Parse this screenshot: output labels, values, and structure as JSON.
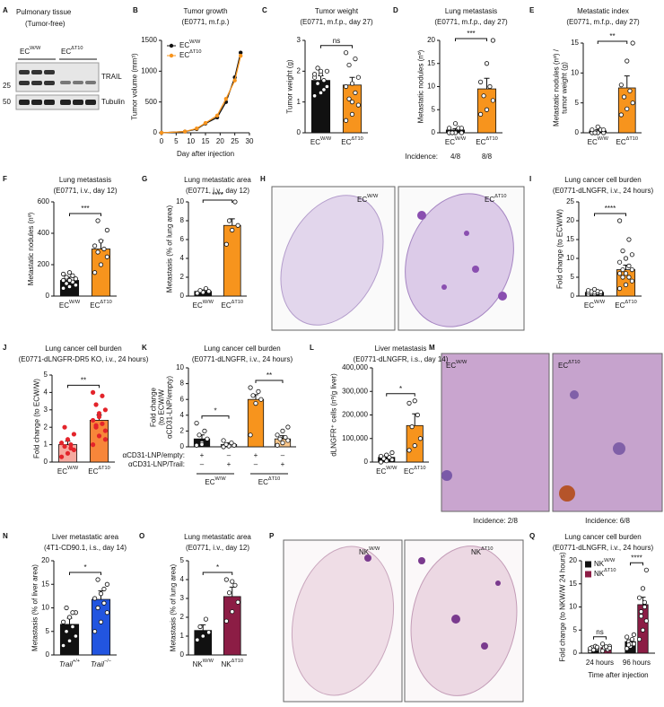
{
  "chart_data": [
    {
      "type": "line",
      "panel": "B",
      "title": "Tumor growth",
      "subtitle": "(E0771, m.f.p.)",
      "xlabel": "Day after injection",
      "ylabel": "Tumor volume (mm³)",
      "x": [
        0,
        8,
        12,
        15,
        19,
        22,
        25,
        27
      ],
      "xlim": [
        0,
        30
      ],
      "xticks": [
        0,
        5,
        10,
        15,
        20,
        25,
        30
      ],
      "ylim": [
        0,
        1500
      ],
      "yticks": [
        0,
        500,
        1000,
        1500
      ],
      "legend": "upper left",
      "series": [
        {
          "name": "ECW/W",
          "color": "#111111",
          "values": [
            0,
            20,
            60,
            150,
            250,
            500,
            900,
            1300
          ]
        },
        {
          "name": "ECΔT10",
          "color": "#f7941d",
          "values": [
            0,
            20,
            70,
            160,
            280,
            550,
            850,
            1250
          ]
        }
      ]
    },
    {
      "type": "bar",
      "panel": "C",
      "title": "Tumor weight",
      "subtitle": "(E0771, m.f.p., day 27)",
      "ylabel": "Tumor weight (g)",
      "categories": [
        "ECW/W",
        "ECΔT10"
      ],
      "values": [
        1.7,
        1.55
      ],
      "errors": [
        0.15,
        0.25
      ],
      "colors": [
        "#111111",
        "#f7941d"
      ],
      "ylim": [
        0,
        3
      ],
      "yticks": [
        0,
        1,
        2,
        3
      ],
      "significance": [
        "ns"
      ],
      "points": [
        [
          1.2,
          1.3,
          1.5,
          1.6,
          1.7,
          1.8,
          1.9,
          2.0,
          2.1,
          1.4,
          1.9,
          2.0
        ],
        [
          0.4,
          0.6,
          0.9,
          1.1,
          1.3,
          1.5,
          1.6,
          1.8,
          2.2,
          2.4,
          2.6,
          1.0
        ]
      ]
    },
    {
      "type": "bar",
      "panel": "D",
      "title": "Lung metastasis",
      "subtitle": "(E0771, m.f.p., day 27)",
      "ylabel": "Metastatic nodules (nº)",
      "categories": [
        "ECW/W",
        "ECΔT10"
      ],
      "values": [
        0.6,
        9.5
      ],
      "errors": [
        0.3,
        2.3
      ],
      "colors": [
        "#111111",
        "#f7941d"
      ],
      "ylim": [
        0,
        20
      ],
      "yticks": [
        0,
        5,
        10,
        15,
        20
      ],
      "significance": [
        "***"
      ],
      "incidence_label": "Incidence:",
      "incidence": [
        "4/8",
        "8/8"
      ],
      "points": [
        [
          0,
          0,
          0,
          0,
          1,
          1,
          2,
          1
        ],
        [
          4,
          5,
          7,
          8,
          10,
          11,
          15,
          20
        ]
      ]
    },
    {
      "type": "bar",
      "panel": "E",
      "title": "Metastatic index",
      "subtitle": "(E0771, m.f.p., day 27)",
      "ylabel": [
        "Metastatic nodules (nº) /",
        "tumor weight (g)"
      ],
      "categories": [
        "ECW/W",
        "ECΔT10"
      ],
      "values": [
        0.3,
        7.5
      ],
      "errors": [
        0.2,
        2
      ],
      "colors": [
        "#111111",
        "#f7941d"
      ],
      "ylim": [
        0,
        15
      ],
      "yticks": [
        0,
        5,
        10,
        15
      ],
      "significance": [
        "**"
      ],
      "points": [
        [
          0,
          0,
          0,
          0,
          0.5,
          0.5,
          1,
          0.5
        ],
        [
          3,
          4,
          5,
          6,
          7,
          8,
          12,
          15
        ]
      ]
    },
    {
      "type": "bar",
      "panel": "F",
      "title": "Lung metastasis",
      "subtitle": "(E0771, i.v., day 12)",
      "ylabel": "Metastatic nodules (nº)",
      "categories": [
        "ECW/W",
        "ECΔT10"
      ],
      "values": [
        100,
        300
      ],
      "errors": [
        20,
        55
      ],
      "colors": [
        "#111111",
        "#f7941d"
      ],
      "ylim": [
        0,
        600
      ],
      "yticks": [
        0,
        200,
        400,
        600
      ],
      "significance": [
        "***"
      ],
      "points": [
        [
          50,
          60,
          70,
          80,
          90,
          100,
          100,
          110,
          120,
          130,
          140,
          150
        ],
        [
          150,
          200,
          250,
          280,
          300,
          320,
          350,
          420,
          480
        ]
      ]
    },
    {
      "type": "bar",
      "panel": "G",
      "title": "Lung metastatic area",
      "subtitle": "(E0771, i.v., day 12)",
      "ylabel": "Metastasis (% of lung area)",
      "categories": [
        "ECW/W",
        "ECΔT10"
      ],
      "values": [
        0.5,
        7.5
      ],
      "errors": [
        0.15,
        0.7
      ],
      "colors": [
        "#111111",
        "#f7941d"
      ],
      "ylim": [
        0,
        10
      ],
      "yticks": [
        0,
        2,
        4,
        6,
        8,
        10
      ],
      "significance": [
        "****"
      ],
      "points": [
        [
          0.3,
          0.4,
          0.5,
          0.6,
          0.8
        ],
        [
          5.5,
          7,
          7.5,
          8,
          10
        ]
      ]
    },
    {
      "type": "bar",
      "panel": "I",
      "title": "Lung cancer cell burden",
      "subtitle": "(E0771-dLNGFR, i.v., 24 hours)",
      "ylabel": "Fold change (to ECW/W)",
      "categories": [
        "ECW/W",
        "ECΔT10"
      ],
      "values": [
        1,
        7
      ],
      "errors": [
        0.2,
        1.2
      ],
      "colors": [
        "#111111",
        "#f7941d"
      ],
      "ylim": [
        0,
        25
      ],
      "yticks": [
        0,
        5,
        10,
        15,
        20,
        25
      ],
      "significance": [
        "****"
      ],
      "points": [
        [
          0.5,
          0.6,
          0.7,
          0.8,
          0.9,
          1,
          1,
          1.1,
          1.2,
          1.3,
          1.5,
          1.8
        ],
        [
          2,
          3,
          4,
          5,
          5,
          6,
          6,
          7,
          7,
          8,
          9,
          10,
          11,
          12,
          15,
          20
        ]
      ]
    },
    {
      "type": "bar",
      "panel": "J",
      "title": "Lung cancer cell burden",
      "subtitle": "(E0771-dLNGFR-DR5 KO, i.v., 24 hours)",
      "ylabel": "Fold change (to ECW/W)",
      "categories": [
        "ECW/W",
        "ECΔT10"
      ],
      "values": [
        1,
        2.4
      ],
      "errors": [
        0.2,
        0.3
      ],
      "colors": [
        "#f5a99f",
        "#f7863a"
      ],
      "point_color": "#e3242b",
      "ylim": [
        0,
        5
      ],
      "yticks": [
        0,
        1,
        2,
        3,
        4,
        5
      ],
      "significance": [
        "**"
      ],
      "points": [
        [
          0.3,
          0.5,
          0.7,
          0.9,
          1,
          1.1,
          1.3,
          1.6,
          2.0,
          0.8
        ],
        [
          1,
          1.5,
          1.8,
          2,
          2.2,
          2.4,
          2.6,
          3,
          3.3,
          3.8,
          4,
          2.8,
          1.3,
          2.1
        ]
      ]
    },
    {
      "type": "bar",
      "panel": "K",
      "title": "Lung cancer cell burden",
      "subtitle": "(E0771-dLNGFR, i.v., 24 hours)",
      "ylabel": [
        "Fold change",
        "(to ECW/W",
        "αCD31-LNP/empty)"
      ],
      "categories": [
        null,
        null,
        null,
        null
      ],
      "values": [
        1,
        0.3,
        6,
        1
      ],
      "errors": [
        0.5,
        0.2,
        0.6,
        0.4
      ],
      "colors": [
        "#111111",
        "#ffffff",
        "#f7941d",
        "#fbc78a"
      ],
      "ylim": [
        0,
        10
      ],
      "yticks": [
        0,
        2,
        4,
        6,
        8,
        10
      ],
      "significance": [
        "*",
        "**"
      ],
      "rows": [
        {
          "label": "αCD31-LNP/empty:",
          "marks": [
            "+",
            "–",
            "+",
            "–"
          ]
        },
        {
          "label": "αCD31-LNP/Trail:",
          "marks": [
            "–",
            "+",
            "–",
            "+"
          ]
        }
      ],
      "groups": [
        "ECW/W",
        "ECΔT10"
      ],
      "points": [
        [
          0.2,
          0.5,
          1,
          1.5,
          2,
          3,
          0.3
        ],
        [
          0,
          0.1,
          0.2,
          0.3,
          0.5,
          0.8
        ],
        [
          1.5,
          5.5,
          6,
          6.5,
          7,
          7.5
        ],
        [
          0.2,
          0.5,
          0.8,
          1,
          1.2,
          1.5,
          2,
          2.5
        ]
      ]
    },
    {
      "type": "bar",
      "panel": "L",
      "title": "Liver metastasis",
      "subtitle": "(E0771-dLNGFR, i.s., day 14)",
      "ylabel": "dLNGFR⁺ cells (nº/g liver)",
      "categories": [
        "ECW/W",
        "ECΔT10"
      ],
      "values": [
        20000,
        155000
      ],
      "errors": [
        8000,
        50000
      ],
      "colors": [
        "#111111",
        "#f7941d"
      ],
      "ylim": [
        0,
        400000
      ],
      "yticks": [
        0,
        {
          "value": 100000,
          "label": "100,000"
        },
        {
          "value": 200000,
          "label": "200,000"
        },
        {
          "value": 300000,
          "label": "300,000"
        },
        {
          "value": 400000,
          "label": "400,000"
        }
      ],
      "significance": [
        "*"
      ],
      "points": [
        [
          0,
          5000,
          10000,
          15000,
          20000,
          25000,
          30000,
          40000
        ],
        [
          50000,
          70000,
          100000,
          150000,
          200000,
          250000,
          260000
        ]
      ]
    },
    {
      "type": "bar",
      "panel": "N",
      "title": "Liver metastatic area",
      "subtitle": "(4T1-CD90.1, i.s., day 14)",
      "ylabel": "Metastasis (% of liver area)",
      "categories": [
        "Trail+/+",
        "Trail−/−"
      ],
      "values": [
        6.5,
        11.8
      ],
      "errors": [
        1.3,
        1.8
      ],
      "colors": [
        "#111111",
        "#2255e0"
      ],
      "ylim": [
        0,
        20
      ],
      "yticks": [
        0,
        5,
        10,
        15,
        20
      ],
      "significance": [
        "*"
      ],
      "points": [
        [
          2,
          3,
          4,
          5,
          6,
          7,
          8,
          9,
          10,
          9
        ],
        [
          5,
          7,
          9,
          10,
          11,
          12,
          13,
          15,
          16,
          14
        ]
      ]
    },
    {
      "type": "bar",
      "panel": "O",
      "title": "Lung metastatic area",
      "subtitle": "(E0771, i.v., day 12)",
      "ylabel": "Metastasis (% of lung area)",
      "categories": [
        "NKW/W",
        "NKΔT10"
      ],
      "values": [
        1.3,
        3.1
      ],
      "errors": [
        0.3,
        0.5
      ],
      "colors": [
        "#111111",
        "#8c1d45"
      ],
      "ylim": [
        0,
        5
      ],
      "yticks": [
        0,
        1,
        2,
        3,
        4,
        5
      ],
      "significance": [
        "*"
      ],
      "points": [
        [
          0.8,
          1,
          1.2,
          1.5,
          1.9
        ],
        [
          1.8,
          2.3,
          2.8,
          3.3,
          3.7,
          4,
          3.9
        ]
      ]
    },
    {
      "type": "bar",
      "panel": "Q",
      "title": "Lung cancer cell burden",
      "subtitle": "(E0771-dLNGFR, i.v., 24 hours)",
      "ylabel": "Fold change (to NKW/W 24 hours)",
      "xlabel": "Time after injection",
      "categories": [
        "24 hours",
        "96 hours"
      ],
      "ylim": [
        0,
        20
      ],
      "yticks": [
        0,
        5,
        10,
        15,
        20
      ],
      "legend": "upper left",
      "significance": [
        "ns",
        "****"
      ],
      "series": [
        {
          "name": "NKW/W",
          "color": "#111111",
          "values": [
            1,
            2.5
          ],
          "errors": [
            0.2,
            0.4
          ],
          "points": [
            [
              0.5,
              0.8,
              1,
              1.2,
              1.5,
              1,
              0.7,
              1.3
            ],
            [
              1,
              1.5,
              2,
              2.5,
              3,
              3.5,
              2,
              4,
              1.8
            ]
          ]
        },
        {
          "name": "NKΔT10",
          "color": "#8c1d45",
          "values": [
            1.2,
            10.5
          ],
          "errors": [
            0.2,
            1.6
          ],
          "points": [
            [
              0.5,
              1,
              1.5,
              1.2,
              0.8,
              2,
              1.4,
              1.1
            ],
            [
              3,
              5,
              7,
              8,
              10,
              12,
              14,
              18,
              9,
              11
            ]
          ]
        }
      ]
    }
  ],
  "images": {
    "A": {
      "panel": "A",
      "title": "Pulmonary tissue",
      "subtitle": "(Tumor-free)",
      "lanes": [
        "ECW/W",
        "ECΔT10"
      ],
      "bands": [
        "TRAIL",
        "Tubulin"
      ],
      "markers": [
        25,
        50
      ]
    },
    "H": {
      "panel": "H",
      "labels": [
        "ECW/W",
        "ECΔT10"
      ]
    },
    "M": {
      "panel": "M",
      "labels": [
        "ECW/W",
        "ECΔT10"
      ],
      "incidence": [
        "Incidence: 2/8",
        "Incidence: 6/8"
      ]
    },
    "P": {
      "panel": "P",
      "labels": [
        "NKW/W",
        "NKΔT10"
      ]
    }
  }
}
